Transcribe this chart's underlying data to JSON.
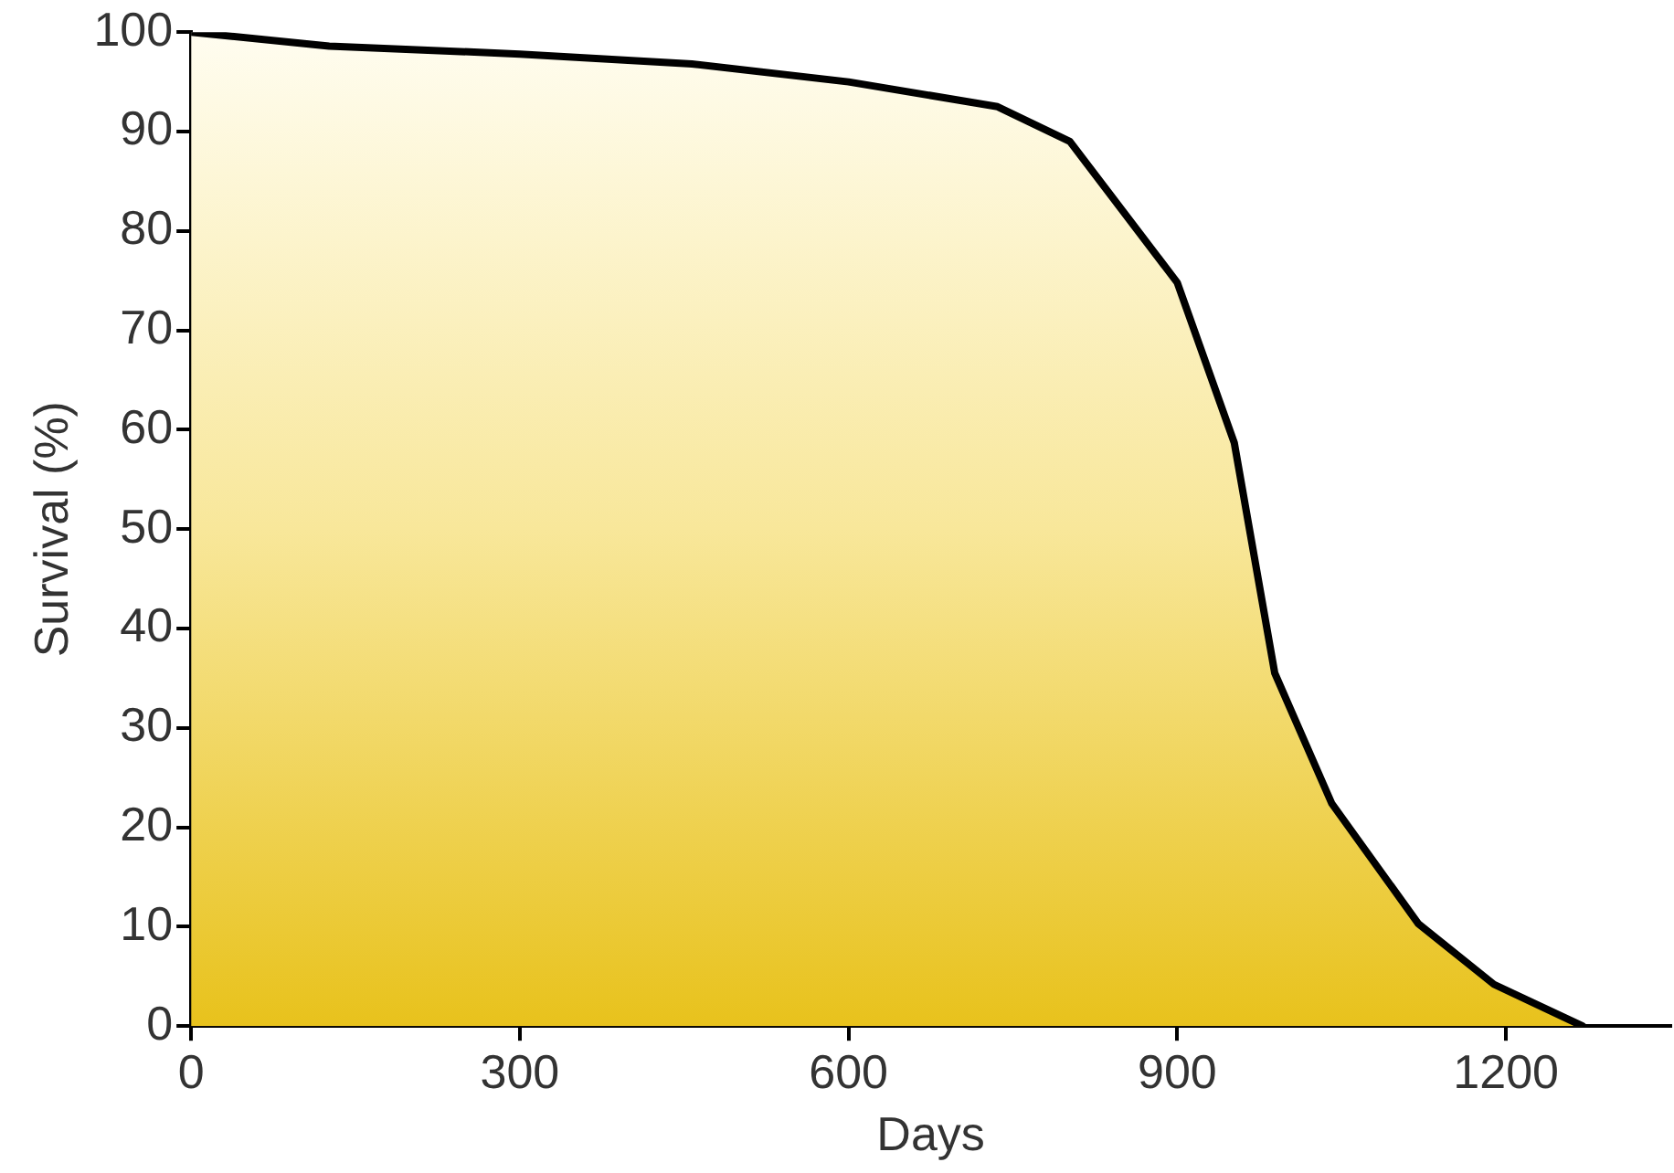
{
  "chart_data": {
    "type": "area",
    "xlabel": "Days",
    "ylabel": "Survival (%)",
    "x": [
      0,
      126,
      300,
      457,
      600,
      736,
      802,
      900,
      952,
      989,
      1041,
      1120,
      1189,
      1270
    ],
    "series": [
      {
        "color": "#000000",
        "values": [
          100,
          98.6,
          97.8,
          96.8,
          95,
          92.5,
          89,
          74.8,
          58.7,
          35.5,
          22.4,
          10.3,
          4.2,
          0
        ]
      }
    ],
    "xlim": [
      0,
      1350
    ],
    "xticks": [
      0,
      300,
      600,
      900,
      1200
    ],
    "ylim": [
      0,
      100
    ],
    "yticks": [
      0,
      10,
      20,
      30,
      40,
      50,
      60,
      70,
      80,
      90,
      100
    ],
    "grid": false,
    "legend": false,
    "marker": "none",
    "line_style": "solid"
  }
}
